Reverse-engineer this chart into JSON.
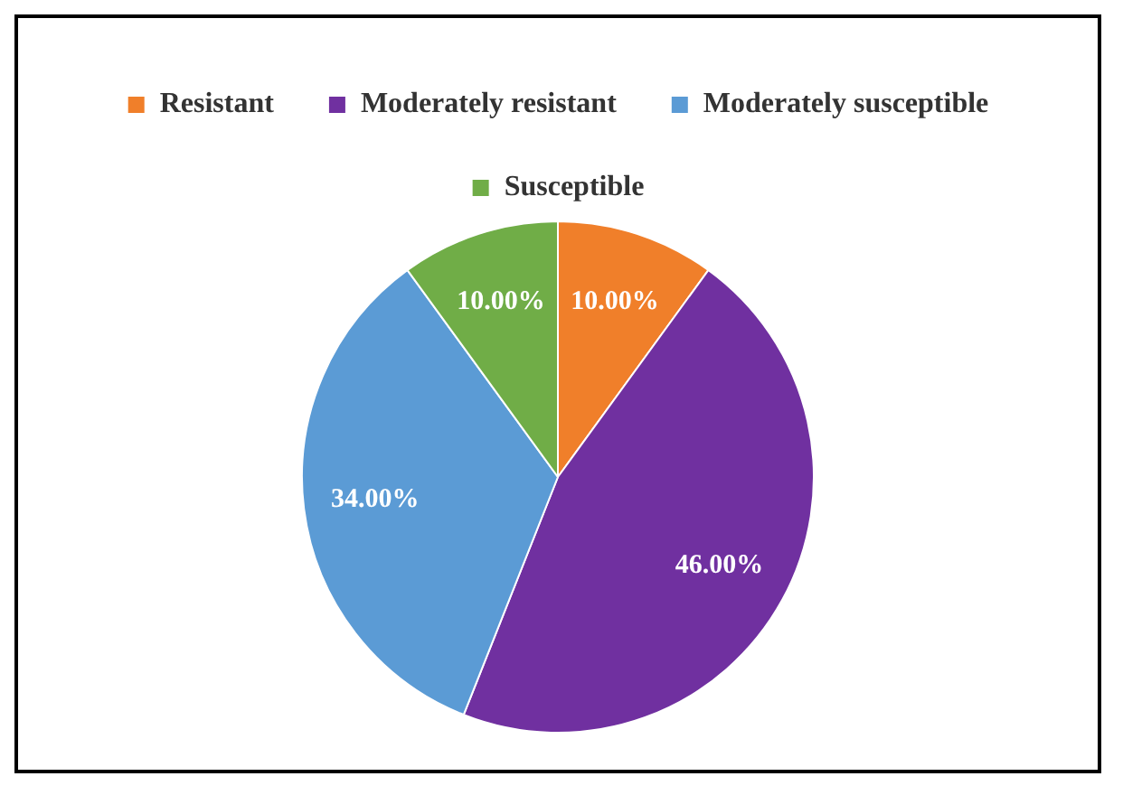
{
  "chart_data": {
    "type": "pie",
    "categories": [
      "Resistant",
      "Moderately resistant",
      "Moderately susceptible",
      "Susceptible"
    ],
    "values": [
      10,
      46,
      34,
      10
    ],
    "colors": [
      "#f07f2a",
      "#7030a0",
      "#5b9bd5",
      "#70ad47"
    ],
    "value_labels": [
      "10.00%",
      "46.00%",
      "34.00%",
      "10.00%"
    ],
    "legend": "top"
  }
}
